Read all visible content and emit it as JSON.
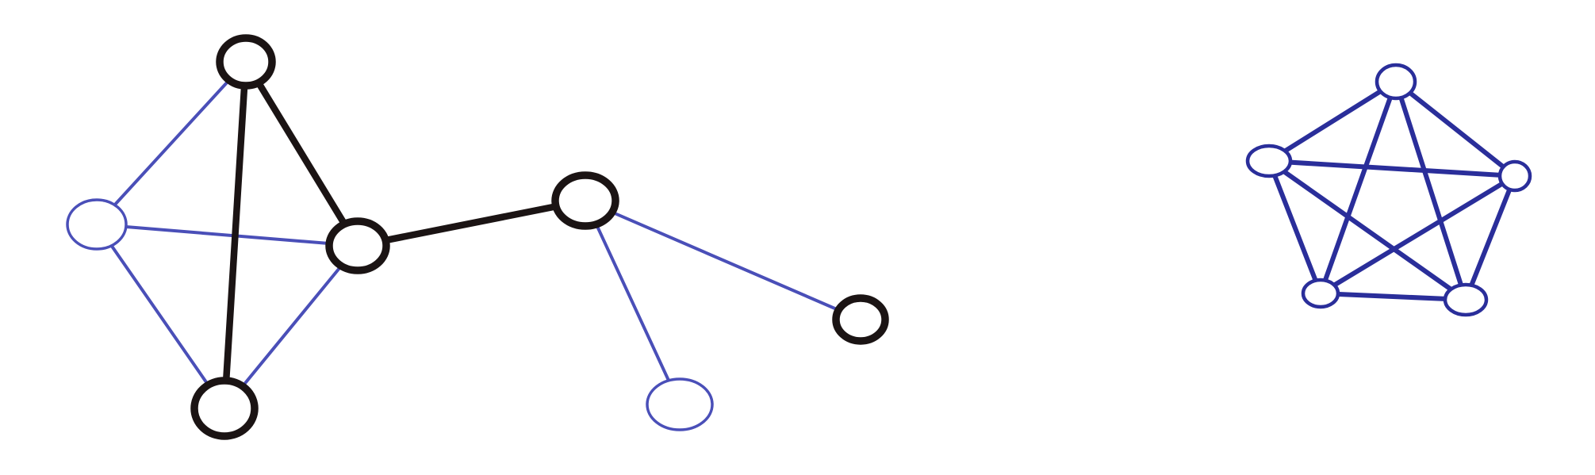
{
  "diagram": {
    "type": "graph",
    "colors": {
      "background": "#ffffff",
      "heavy": "#1b1414",
      "light": "#4a4fb8",
      "pentagon": "#2a2e9a"
    },
    "graphs": [
      {
        "name": "left-graph",
        "nodes": [
          {
            "id": "A",
            "weight": "heavy"
          },
          {
            "id": "B",
            "weight": "light"
          },
          {
            "id": "C",
            "weight": "heavy"
          },
          {
            "id": "D",
            "weight": "heavy"
          },
          {
            "id": "E",
            "weight": "heavy"
          },
          {
            "id": "F",
            "weight": "heavy"
          },
          {
            "id": "G",
            "weight": "light"
          }
        ],
        "edges": [
          {
            "from": "A",
            "to": "C",
            "weight": "heavy"
          },
          {
            "from": "A",
            "to": "D",
            "weight": "heavy"
          },
          {
            "from": "C",
            "to": "E",
            "weight": "heavy"
          },
          {
            "from": "A",
            "to": "B",
            "weight": "light"
          },
          {
            "from": "B",
            "to": "C",
            "weight": "light"
          },
          {
            "from": "B",
            "to": "D",
            "weight": "light"
          },
          {
            "from": "D",
            "to": "C",
            "weight": "light"
          },
          {
            "from": "E",
            "to": "F",
            "weight": "light"
          },
          {
            "from": "E",
            "to": "G",
            "weight": "light"
          }
        ]
      },
      {
        "name": "complete-graph-k5",
        "nodes": [
          {
            "id": "P1",
            "weight": "light"
          },
          {
            "id": "P2",
            "weight": "light"
          },
          {
            "id": "P3",
            "weight": "light"
          },
          {
            "id": "P4",
            "weight": "light"
          },
          {
            "id": "P5",
            "weight": "light"
          }
        ],
        "edges": [
          {
            "from": "P1",
            "to": "P2",
            "weight": "medium"
          },
          {
            "from": "P1",
            "to": "P3",
            "weight": "medium"
          },
          {
            "from": "P1",
            "to": "P4",
            "weight": "medium"
          },
          {
            "from": "P1",
            "to": "P5",
            "weight": "medium"
          },
          {
            "from": "P2",
            "to": "P3",
            "weight": "medium"
          },
          {
            "from": "P2",
            "to": "P4",
            "weight": "medium"
          },
          {
            "from": "P2",
            "to": "P5",
            "weight": "medium"
          },
          {
            "from": "P3",
            "to": "P4",
            "weight": "medium"
          },
          {
            "from": "P3",
            "to": "P5",
            "weight": "medium"
          },
          {
            "from": "P4",
            "to": "P5",
            "weight": "medium"
          }
        ]
      }
    ]
  }
}
